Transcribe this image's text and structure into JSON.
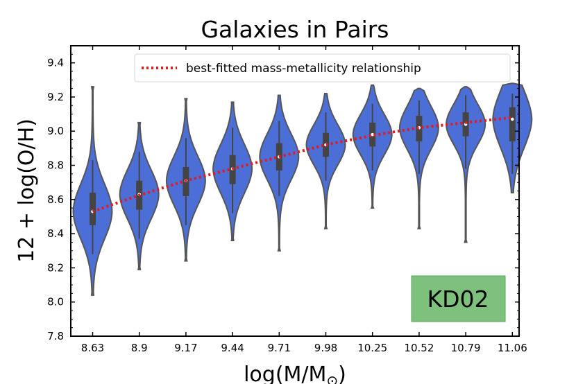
{
  "chart_data": {
    "type": "violin",
    "title": "Galaxies in Pairs",
    "xlabel": "log(M/M",
    "xlabel_sub": "⊙",
    "xlabel_close": ")",
    "ylabel": "12 + log(O/H)",
    "ylim": [
      7.8,
      9.5
    ],
    "y_ticks": [
      "7.8",
      "8.0",
      "8.2",
      "8.4",
      "8.6",
      "8.8",
      "9.0",
      "9.2",
      "9.4"
    ],
    "categories": [
      "8.63",
      "8.9",
      "9.17",
      "9.44",
      "9.71",
      "9.98",
      "10.25",
      "10.52",
      "10.79",
      "11.06"
    ],
    "violins": [
      {
        "min": 8.04,
        "max": 9.26,
        "q1": 8.45,
        "median": 8.53,
        "q3": 8.64,
        "wlo": 8.28,
        "whi": 8.83
      },
      {
        "min": 8.19,
        "max": 9.05,
        "q1": 8.54,
        "median": 8.63,
        "q3": 8.71,
        "wlo": 8.37,
        "whi": 8.88
      },
      {
        "min": 8.24,
        "max": 9.19,
        "q1": 8.62,
        "median": 8.71,
        "q3": 8.79,
        "wlo": 8.45,
        "whi": 8.96
      },
      {
        "min": 8.36,
        "max": 9.17,
        "q1": 8.69,
        "median": 8.78,
        "q3": 8.86,
        "wlo": 8.52,
        "whi": 9.02
      },
      {
        "min": 8.3,
        "max": 9.21,
        "q1": 8.77,
        "median": 8.85,
        "q3": 8.93,
        "wlo": 8.62,
        "whi": 9.06
      },
      {
        "min": 8.43,
        "max": 9.22,
        "q1": 8.85,
        "median": 8.92,
        "q3": 8.99,
        "wlo": 8.71,
        "whi": 9.11
      },
      {
        "min": 8.55,
        "max": 9.27,
        "q1": 8.91,
        "median": 8.98,
        "q3": 9.05,
        "wlo": 8.77,
        "whi": 9.16
      },
      {
        "min": 8.43,
        "max": 9.25,
        "q1": 8.94,
        "median": 9.02,
        "q3": 9.09,
        "wlo": 8.75,
        "whi": 9.18
      },
      {
        "min": 8.35,
        "max": 9.26,
        "q1": 8.97,
        "median": 9.04,
        "q3": 9.11,
        "wlo": 8.78,
        "whi": 9.21
      },
      {
        "min": 8.64,
        "max": 9.28,
        "q1": 8.94,
        "median": 9.07,
        "q3": 9.14,
        "wlo": 8.75,
        "whi": 9.22
      }
    ],
    "fit_line": {
      "name": "best-fitted mass-metallicity relationship",
      "values": [
        8.53,
        8.625,
        8.71,
        8.78,
        8.85,
        8.92,
        8.975,
        9.02,
        9.05,
        9.08
      ],
      "color": "#e41a1c",
      "style": "dotted"
    },
    "violin_color": "#4b6fd6",
    "violin_edge_color": "#555555",
    "legend_position": "top-right",
    "grid": false,
    "annotation": {
      "text": "KD02",
      "position": "bottom-right",
      "color": "#7dc17d"
    }
  }
}
